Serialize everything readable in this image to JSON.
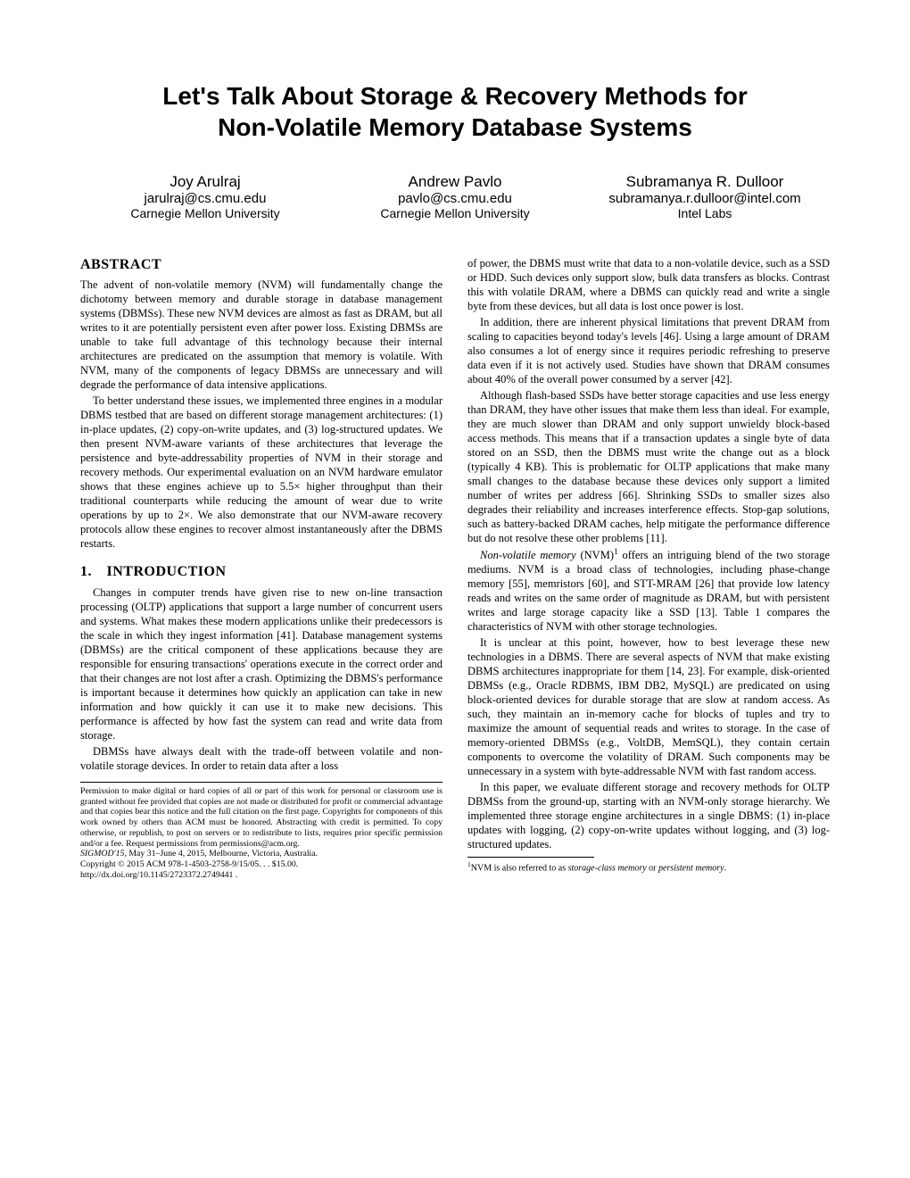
{
  "title_line1": "Let's Talk About Storage & Recovery Methods for",
  "title_line2": "Non-Volatile Memory Database Systems",
  "authors": [
    {
      "name": "Joy Arulraj",
      "email": "jarulraj@cs.cmu.edu",
      "affil": "Carnegie Mellon University"
    },
    {
      "name": "Andrew Pavlo",
      "email": "pavlo@cs.cmu.edu",
      "affil": "Carnegie Mellon University"
    },
    {
      "name": "Subramanya R. Dulloor",
      "email": "subramanya.r.dulloor@intel.com",
      "affil": "Intel Labs"
    }
  ],
  "abstract_heading": "ABSTRACT",
  "abstract_p1": "The advent of non-volatile memory (NVM) will fundamentally change the dichotomy between memory and durable storage in database management systems (DBMSs). These new NVM devices are almost as fast as DRAM, but all writes to it are potentially persistent even after power loss. Existing DBMSs are unable to take full advantage of this technology because their internal architectures are predicated on the assumption that memory is volatile. With NVM, many of the components of legacy DBMSs are unnecessary and will degrade the performance of data intensive applications.",
  "abstract_p2": "To better understand these issues, we implemented three engines in a modular DBMS testbed that are based on different storage management architectures: (1) in-place updates, (2) copy-on-write updates, and (3) log-structured updates. We then present NVM-aware variants of these architectures that leverage the persistence and byte-addressability properties of NVM in their storage and recovery methods. Our experimental evaluation on an NVM hardware emulator shows that these engines achieve up to 5.5× higher throughput than their traditional counterparts while reducing the amount of wear due to write operations by up to 2×. We also demonstrate that our NVM-aware recovery protocols allow these engines to recover almost instantaneously after the DBMS restarts.",
  "intro_heading": "1. INTRODUCTION",
  "intro_p1": "Changes in computer trends have given rise to new on-line transaction processing (OLTP) applications that support a large number of concurrent users and systems. What makes these modern applications unlike their predecessors is the scale in which they ingest information [41]. Database management systems (DBMSs) are the critical component of these applications because they are responsible for ensuring transactions' operations execute in the correct order and that their changes are not lost after a crash. Optimizing the DBMS's performance is important because it determines how quickly an application can take in new information and how quickly it can use it to make new decisions. This performance is affected by how fast the system can read and write data from storage.",
  "intro_p2": "DBMSs have always dealt with the trade-off between volatile and non-volatile storage devices. In order to retain data after a loss",
  "permission_p1": "Permission to make digital or hard copies of all or part of this work for personal or classroom use is granted without fee provided that copies are not made or distributed for profit or commercial advantage and that copies bear this notice and the full citation on the first page. Copyrights for components of this work owned by others than ACM must be honored. Abstracting with credit is permitted. To copy otherwise, or republish, to post on servers or to redistribute to lists, requires prior specific permission and/or a fee. Request permissions from permissions@acm.org.",
  "permission_venue": "SIGMOD'15,",
  "permission_date": " May 31–June 4, 2015, Melbourne, Victoria, Australia.",
  "permission_copyright": "Copyright © 2015 ACM 978-1-4503-2758-9/15/05. . . $15.00.",
  "permission_doi": "http://dx.doi.org/10.1145/2723372.2749441 .",
  "col2_p1": "of power, the DBMS must write that data to a non-volatile device, such as a SSD or HDD. Such devices only support slow, bulk data transfers as blocks. Contrast this with volatile DRAM, where a DBMS can quickly read and write a single byte from these devices, but all data is lost once power is lost.",
  "col2_p2": "In addition, there are inherent physical limitations that prevent DRAM from scaling to capacities beyond today's levels [46]. Using a large amount of DRAM also consumes a lot of energy since it requires periodic refreshing to preserve data even if it is not actively used. Studies have shown that DRAM consumes about 40% of the overall power consumed by a server [42].",
  "col2_p3": "Although flash-based SSDs have better storage capacities and use less energy than DRAM, they have other issues that make them less than ideal. For example, they are much slower than DRAM and only support unwieldy block-based access methods. This means that if a transaction updates a single byte of data stored on an SSD, then the DBMS must write the change out as a block (typically 4 KB). This is problematic for OLTP applications that make many small changes to the database because these devices only support a limited number of writes per address [66]. Shrinking SSDs to smaller sizes also degrades their reliability and increases interference effects. Stop-gap solutions, such as battery-backed DRAM caches, help mitigate the performance difference but do not resolve these other problems [11].",
  "col2_p4_pre": "Non-volatile memory",
  "col2_p4_post": " (NVM)",
  "col2_p4_rest": " offers an intriguing blend of the two storage mediums. NVM is a broad class of technologies, including phase-change memory [55], memristors [60], and STT-MRAM [26] that provide low latency reads and writes on the same order of magnitude as DRAM, but with persistent writes and large storage capacity like a SSD [13]. Table 1 compares the characteristics of NVM with other storage technologies.",
  "col2_p5": "It is unclear at this point, however, how to best leverage these new technologies in a DBMS. There are several aspects of NVM that make existing DBMS architectures inappropriate for them [14, 23]. For example, disk-oriented DBMSs (e.g., Oracle RDBMS, IBM DB2, MySQL) are predicated on using block-oriented devices for durable storage that are slow at random access. As such, they maintain an in-memory cache for blocks of tuples and try to maximize the amount of sequential reads and writes to storage. In the case of memory-oriented DBMSs (e.g., VoltDB, MemSQL), they contain certain components to overcome the volatility of DRAM. Such components may be unnecessary in a system with byte-addressable NVM with fast random access.",
  "col2_p6": "In this paper, we evaluate different storage and recovery methods for OLTP DBMSs from the ground-up, starting with an NVM-only storage hierarchy. We implemented three storage engine architectures in a single DBMS: (1) in-place updates with logging, (2) copy-on-write updates without logging, and (3) log-structured updates.",
  "footnote_sup": "1",
  "footnote_text_pre": "NVM is also referred to as ",
  "footnote_em1": "storage-class memory",
  "footnote_mid": " or ",
  "footnote_em2": "persistent memory",
  "footnote_end": "."
}
